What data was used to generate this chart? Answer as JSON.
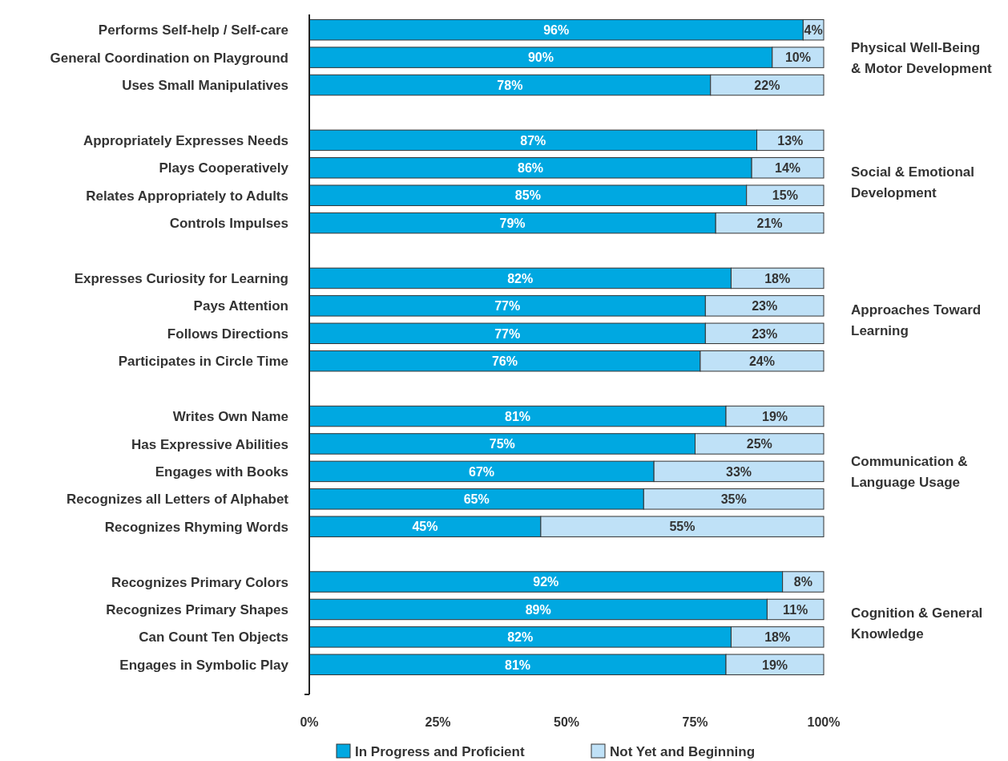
{
  "chart_data": {
    "type": "bar",
    "orientation": "horizontal",
    "stacked": true,
    "categories": [
      "Performs Self-help / Self-care",
      "General Coordination on Playground",
      "Uses Small Manipulatives",
      null,
      "Appropriately Expresses Needs",
      "Plays Cooperatively",
      "Relates Appropriately to Adults",
      "Controls Impulses",
      null,
      "Expresses Curiosity for Learning",
      "Pays Attention",
      "Follows Directions",
      "Participates in Circle Time",
      null,
      "Writes Own Name",
      "Has Expressive Abilities",
      "Engages with Books",
      "Recognizes all Letters of Alphabet",
      "Recognizes Rhyming Words",
      null,
      "Recognizes Primary Colors",
      "Recognizes Primary Shapes",
      "Can Count Ten Objects",
      "Engages in Symbolic Play"
    ],
    "series": [
      {
        "name": "In Progress and Proficient",
        "color": "#00a8e1",
        "values": [
          96,
          90,
          78,
          null,
          87,
          86,
          85,
          79,
          null,
          82,
          77,
          77,
          76,
          null,
          81,
          75,
          67,
          65,
          45,
          null,
          92,
          89,
          82,
          81
        ],
        "value_labels": [
          "96%",
          "90%",
          "78%",
          null,
          "87%",
          "86%",
          "85%",
          "79%",
          null,
          "82%",
          "77%",
          "77%",
          "76%",
          null,
          "81%",
          "75%",
          "67%",
          "65%",
          "45%",
          null,
          "92%",
          "89%",
          "82%",
          "81%"
        ]
      },
      {
        "name": "Not Yet and Beginning",
        "color": "#bfe1f7",
        "values": [
          4,
          10,
          22,
          null,
          13,
          14,
          15,
          21,
          null,
          18,
          23,
          23,
          24,
          null,
          19,
          25,
          33,
          35,
          55,
          null,
          8,
          11,
          18,
          19
        ],
        "value_labels": [
          "4%",
          "10%",
          "22%",
          null,
          "13%",
          "14%",
          "15%",
          "21%",
          null,
          "18%",
          "23%",
          "23%",
          "24%",
          null,
          "19%",
          "25%",
          "33%",
          "35%",
          "55%",
          null,
          "8%",
          "11%",
          "18%",
          "19%"
        ]
      }
    ],
    "xlim": [
      0,
      100
    ],
    "xticks": [
      {
        "value": 0,
        "label": "0%"
      },
      {
        "value": 25,
        "label": "25%"
      },
      {
        "value": 50,
        "label": "50%"
      },
      {
        "value": 75,
        "label": "75%"
      },
      {
        "value": 100,
        "label": "100%"
      }
    ],
    "legend": "bottom",
    "grid": false,
    "annotations": [
      "Physical Well-Being\n& Motor Development",
      "Social & Emotional\nDevelopment",
      "Approaches Toward\nLearning",
      "Communication &\nLanguage Usage",
      "Cognition & General\nKnowledge"
    ]
  }
}
